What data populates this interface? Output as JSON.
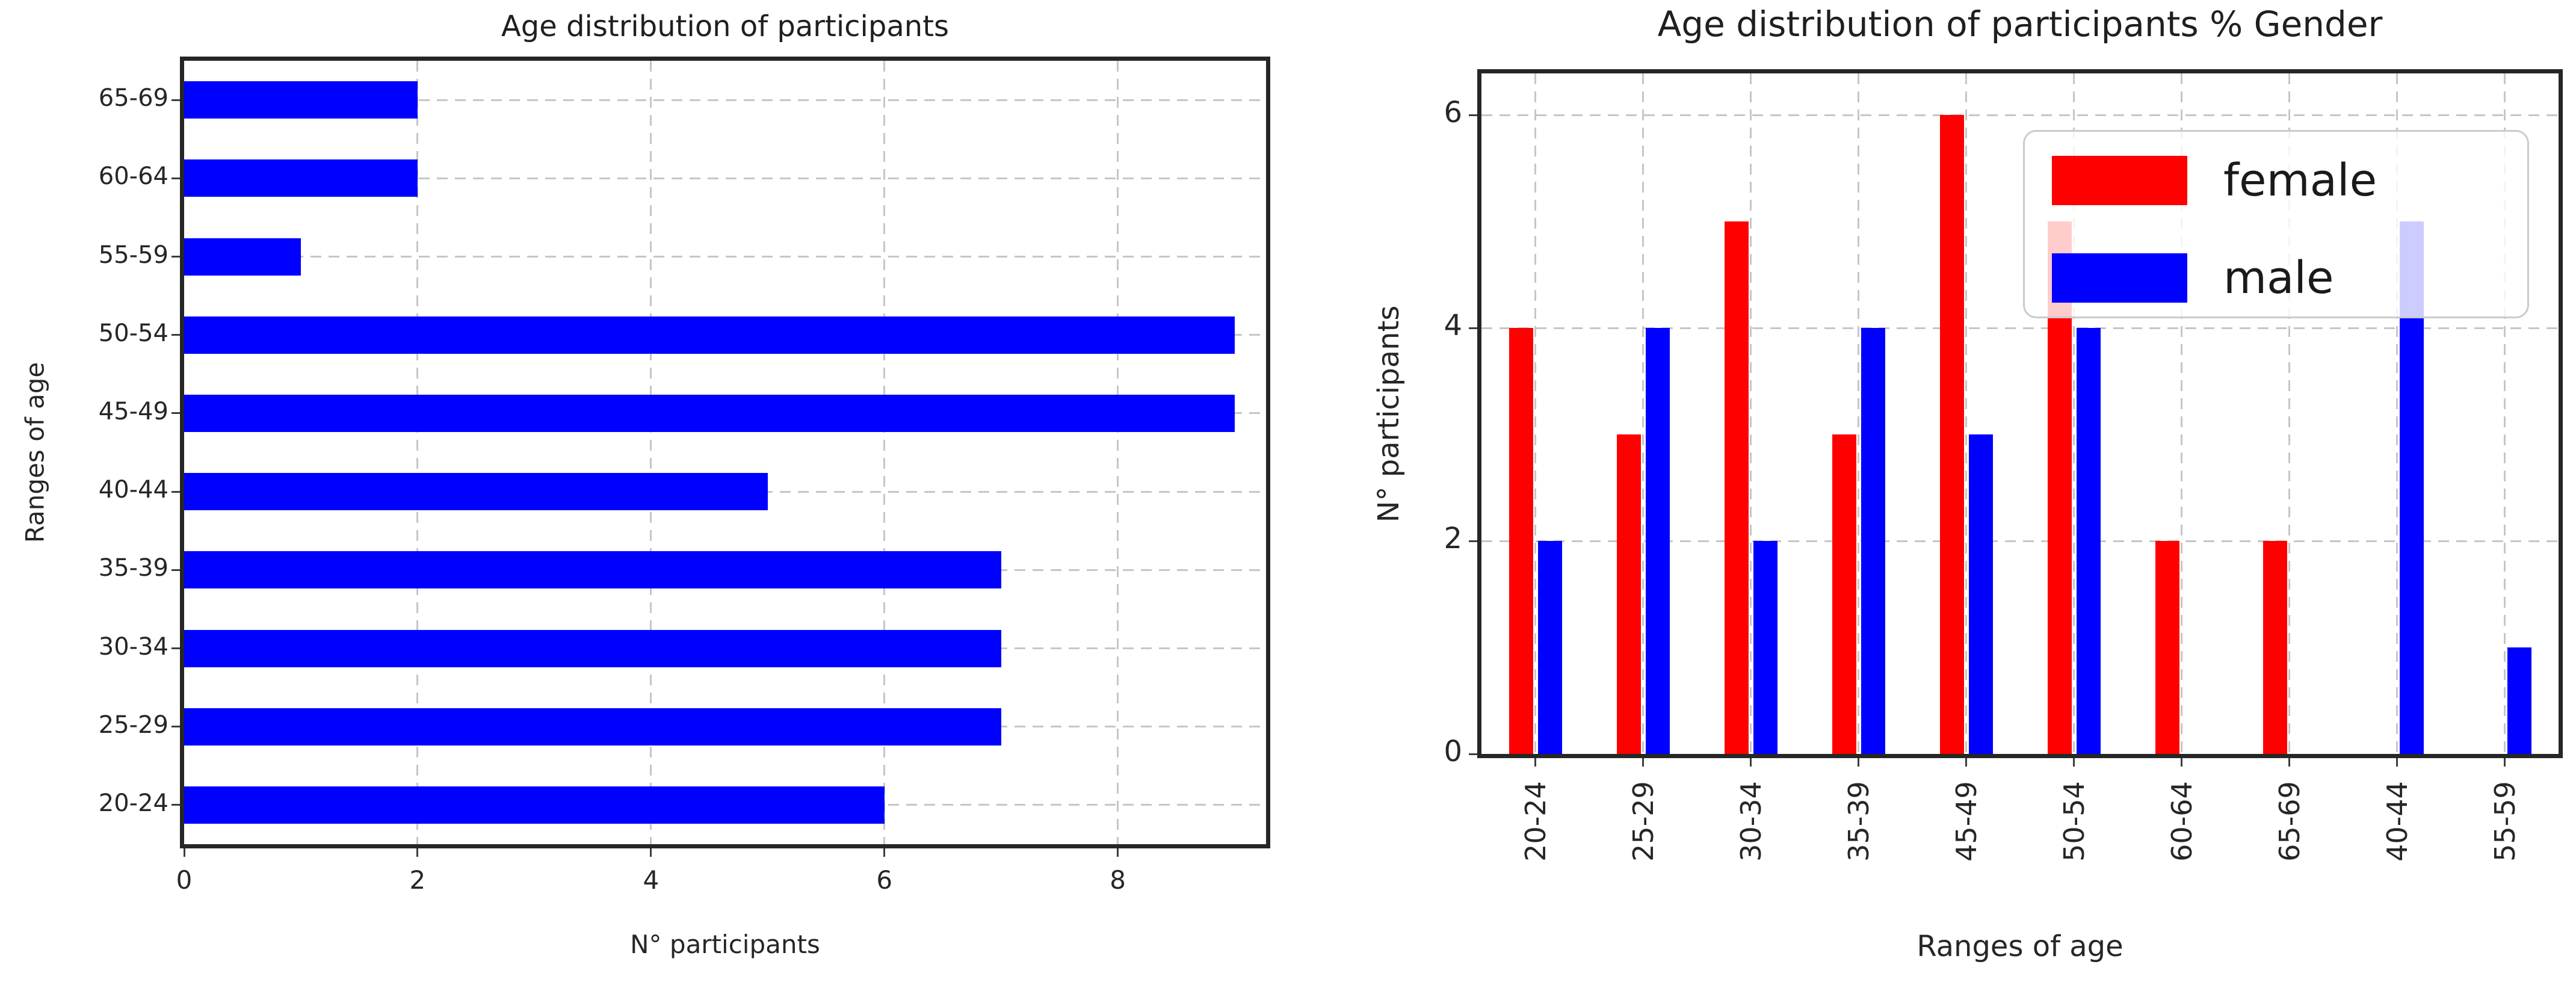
{
  "figure": {
    "background": "#ffffff",
    "text_color": "#262626",
    "spine_color": "#262626",
    "grid_color": "#c6c6c6"
  },
  "chart_data": [
    {
      "type": "bar",
      "orientation": "horizontal",
      "title": "Age distribution of participants",
      "xlabel": "N° participants",
      "ylabel": "Ranges of age",
      "categories": [
        "65-69",
        "60-64",
        "55-59",
        "50-54",
        "45-49",
        "40-44",
        "35-39",
        "30-34",
        "25-29",
        "20-24"
      ],
      "values": [
        2,
        2,
        1,
        9,
        9,
        5,
        7,
        7,
        7,
        6
      ],
      "bar_color": "#0000ff",
      "xticks": [
        0,
        2,
        4,
        6,
        8
      ],
      "xlim": [
        0,
        9.27
      ],
      "grid": true,
      "legend_position": "none"
    },
    {
      "type": "bar",
      "orientation": "vertical",
      "title": "Age distribution of participants % Gender",
      "xlabel": "Ranges of age",
      "ylabel": "N° participants",
      "categories": [
        "20-24",
        "25-29",
        "30-34",
        "35-39",
        "45-49",
        "50-54",
        "60-64",
        "65-69",
        "40-44",
        "55-59"
      ],
      "series": [
        {
          "name": "female",
          "color": "#ff0000",
          "values": [
            4,
            3,
            5,
            3,
            6,
            5,
            2,
            2,
            0,
            0
          ]
        },
        {
          "name": "male",
          "color": "#0000ff",
          "values": [
            2,
            4,
            2,
            4,
            3,
            4,
            0,
            0,
            5,
            1
          ]
        }
      ],
      "yticks": [
        0,
        2,
        4,
        6
      ],
      "ylim": [
        0,
        6.39
      ],
      "xtick_rotation": 90,
      "legend": {
        "labels": [
          "female",
          "male"
        ],
        "position": "upper right"
      },
      "grid": true
    }
  ]
}
